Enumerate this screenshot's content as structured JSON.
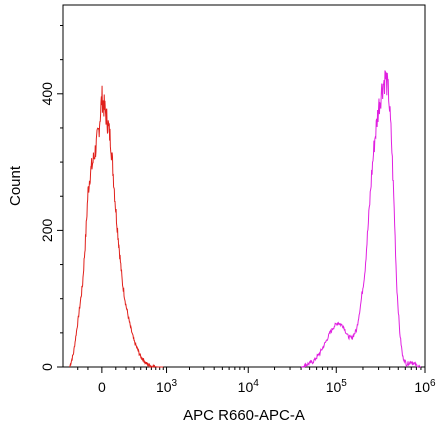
{
  "chart_data": {
    "type": "line",
    "xlabel": "APC R660-APC-A",
    "ylabel": "Count",
    "x_scale": "biexponential",
    "xlim": [
      -400,
      1000000
    ],
    "ylim": [
      0,
      530
    ],
    "x_ticks": [
      {
        "value": 0,
        "label": "0"
      },
      {
        "value": 1000,
        "base": "10",
        "exp": "3"
      },
      {
        "value": 10000,
        "base": "10",
        "exp": "4"
      },
      {
        "value": 100000,
        "base": "10",
        "exp": "5"
      },
      {
        "value": 1000000,
        "base": "10",
        "exp": "6"
      }
    ],
    "y_ticks": [
      {
        "value": 0,
        "label": "0"
      },
      {
        "value": 200,
        "label": "200"
      },
      {
        "value": 400,
        "label": "400"
      }
    ],
    "grid": false,
    "legend": "none",
    "series": [
      {
        "color": "#e0201b",
        "x": [
          -300,
          -250,
          -200,
          -150,
          -120,
          -100,
          -80,
          -60,
          -40,
          -20,
          0,
          20,
          40,
          60,
          80,
          100,
          130,
          160,
          200,
          250,
          300,
          400,
          500,
          600,
          750,
          900
        ],
        "y": [
          0,
          20,
          65,
          120,
          190,
          255,
          285,
          300,
          320,
          345,
          395,
          375,
          355,
          330,
          280,
          230,
          175,
          125,
          90,
          60,
          38,
          15,
          5,
          1,
          0,
          0
        ]
      },
      {
        "color": "#e020e0",
        "x": [
          40000,
          55000,
          65000,
          75000,
          85000,
          95000,
          105000,
          120000,
          135000,
          150000,
          170000,
          190000,
          210000,
          230000,
          250000,
          270000,
          300000,
          330000,
          360000,
          390000,
          420000,
          450000,
          480000,
          520000,
          560000,
          620000,
          700000,
          800000,
          900000
        ],
        "y": [
          0,
          8,
          20,
          35,
          50,
          60,
          65,
          60,
          45,
          42,
          55,
          95,
          140,
          210,
          280,
          330,
          380,
          410,
          425,
          400,
          330,
          230,
          120,
          50,
          15,
          4,
          8,
          2,
          0
        ]
      }
    ]
  }
}
